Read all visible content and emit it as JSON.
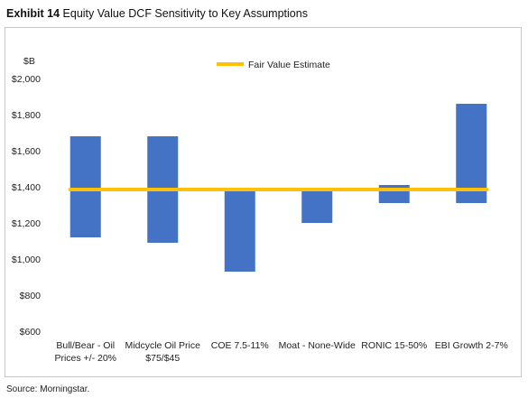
{
  "exhibit": {
    "number": "Exhibit 14",
    "title": "Equity Value DCF Sensitivity to Key Assumptions"
  },
  "source": "Source: Morningstar.",
  "chart_data": {
    "type": "bar",
    "subtype": "floating-range",
    "ylabel": "$B",
    "ylim": [
      600,
      2000
    ],
    "yticks": [
      600,
      800,
      1000,
      1200,
      1400,
      1600,
      1800,
      2000
    ],
    "ytick_labels": [
      "$600",
      "$800",
      "$1,000",
      "$1,200",
      "$1,400",
      "$1,600",
      "$1,800",
      "$2,000"
    ],
    "categories": [
      [
        "Bull/Bear - Oil",
        "Prices +/- 20%"
      ],
      [
        "Midcycle Oil Price",
        "$75/$45"
      ],
      [
        "COE 7.5-11%"
      ],
      [
        "Moat - None-Wide"
      ],
      [
        "RONIC 15-50%"
      ],
      [
        "EBI Growth 2-7%"
      ]
    ],
    "ranges": [
      [
        1120,
        1680
      ],
      [
        1090,
        1680
      ],
      [
        930,
        1380
      ],
      [
        1200,
        1380
      ],
      [
        1310,
        1410
      ],
      [
        1310,
        1860
      ]
    ],
    "fair_value": {
      "name": "Fair Value Estimate",
      "value": 1385
    },
    "grid": false,
    "legend_position": "top",
    "colors": {
      "bars": "#4472C4",
      "fair_value_line": "#FFC000"
    }
  }
}
